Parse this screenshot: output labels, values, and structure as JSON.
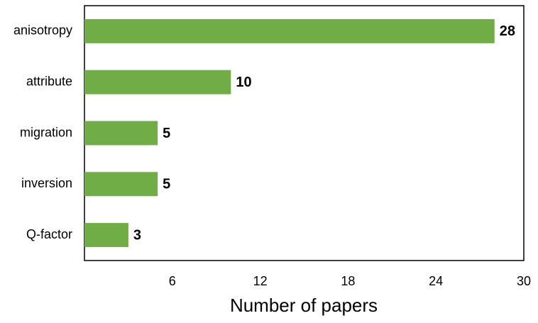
{
  "chart_data": {
    "type": "barh",
    "categories": [
      "anisotropy",
      "attribute",
      "migration",
      "inversion",
      "Q-factor"
    ],
    "values": [
      28,
      10,
      5,
      5,
      3
    ],
    "color": "#70ad47",
    "xlim": [
      0,
      30
    ],
    "xticks": [
      6,
      12,
      18,
      24,
      30
    ],
    "x_label": "Number of papers",
    "grid": false
  }
}
